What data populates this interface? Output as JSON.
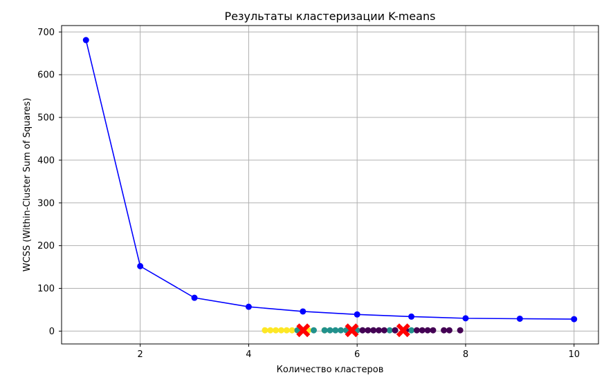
{
  "chart_data": {
    "type": "line",
    "title": "Результаты кластеризации K-means",
    "xlabel": "Количество кластеров",
    "ylabel": "WCSS (Within-Cluster Sum of Squares)",
    "xlim": [
      0.55,
      10.45
    ],
    "ylim": [
      -30,
      715
    ],
    "xticks": [
      2,
      4,
      6,
      8,
      10
    ],
    "yticks": [
      0,
      100,
      200,
      300,
      400,
      500,
      600,
      700
    ],
    "grid": true,
    "series": [
      {
        "type": "line",
        "color": "#0000ff",
        "marker": "circle",
        "x": [
          1,
          2,
          3,
          4,
          5,
          6,
          7,
          8,
          9,
          10
        ],
        "y": [
          681,
          152,
          78,
          57,
          46,
          39,
          34,
          30,
          29,
          28
        ]
      },
      {
        "type": "scatter",
        "color": "#fde725",
        "x": [
          4.3,
          4.4,
          4.5,
          4.6,
          4.7,
          4.8,
          4.9,
          5.0,
          5.1,
          5.4
        ],
        "y": [
          2,
          2,
          2,
          2,
          2,
          2,
          2,
          2,
          2,
          2
        ]
      },
      {
        "type": "scatter",
        "color": "#21918c",
        "x": [
          4.9,
          5.0,
          5.2,
          5.4,
          5.5,
          5.6,
          5.7,
          5.8,
          5.9,
          6.0,
          6.1,
          6.3,
          6.6,
          6.7,
          7.0
        ],
        "y": [
          2,
          2,
          2,
          2,
          2,
          2,
          2,
          2,
          2,
          2,
          2,
          2,
          2,
          2,
          2
        ]
      },
      {
        "type": "scatter",
        "color": "#440154",
        "x": [
          6.1,
          6.2,
          6.3,
          6.4,
          6.5,
          6.7,
          6.9,
          7.1,
          7.2,
          7.3,
          7.4,
          7.6,
          7.7,
          7.9
        ],
        "y": [
          2,
          2,
          2,
          2,
          2,
          2,
          2,
          2,
          2,
          2,
          2,
          2,
          2,
          2
        ]
      },
      {
        "type": "scatter",
        "color": "#ff0000",
        "marker": "X",
        "x": [
          5.006,
          5.9016,
          6.85
        ],
        "y": [
          2,
          2,
          2
        ]
      }
    ]
  }
}
